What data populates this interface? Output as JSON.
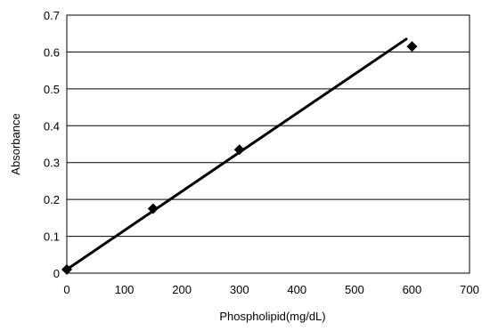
{
  "chart_data": {
    "type": "scatter",
    "title": "",
    "xlabel": "Phospholipid(mg/dL)",
    "ylabel": "Absorbance",
    "xlim": [
      0,
      700
    ],
    "ylim": [
      0,
      0.7
    ],
    "x_ticks": [
      "0",
      "100",
      "200",
      "300",
      "400",
      "500",
      "600",
      "700"
    ],
    "y_ticks": [
      "0",
      "0.1",
      "0.2",
      "0.3",
      "0.4",
      "0.5",
      "0.6",
      "0.7"
    ],
    "grid": "horizontal",
    "legend": "none",
    "series": [
      {
        "marker": "diamond",
        "color": "#000000",
        "x": [
          0,
          150,
          300,
          600
        ],
        "y": [
          0.01,
          0.175,
          0.335,
          0.615
        ]
      }
    ],
    "trendline": {
      "type": "linear",
      "color": "#000000",
      "x": [
        0,
        590
      ],
      "y": [
        0.01,
        0.635
      ]
    }
  }
}
